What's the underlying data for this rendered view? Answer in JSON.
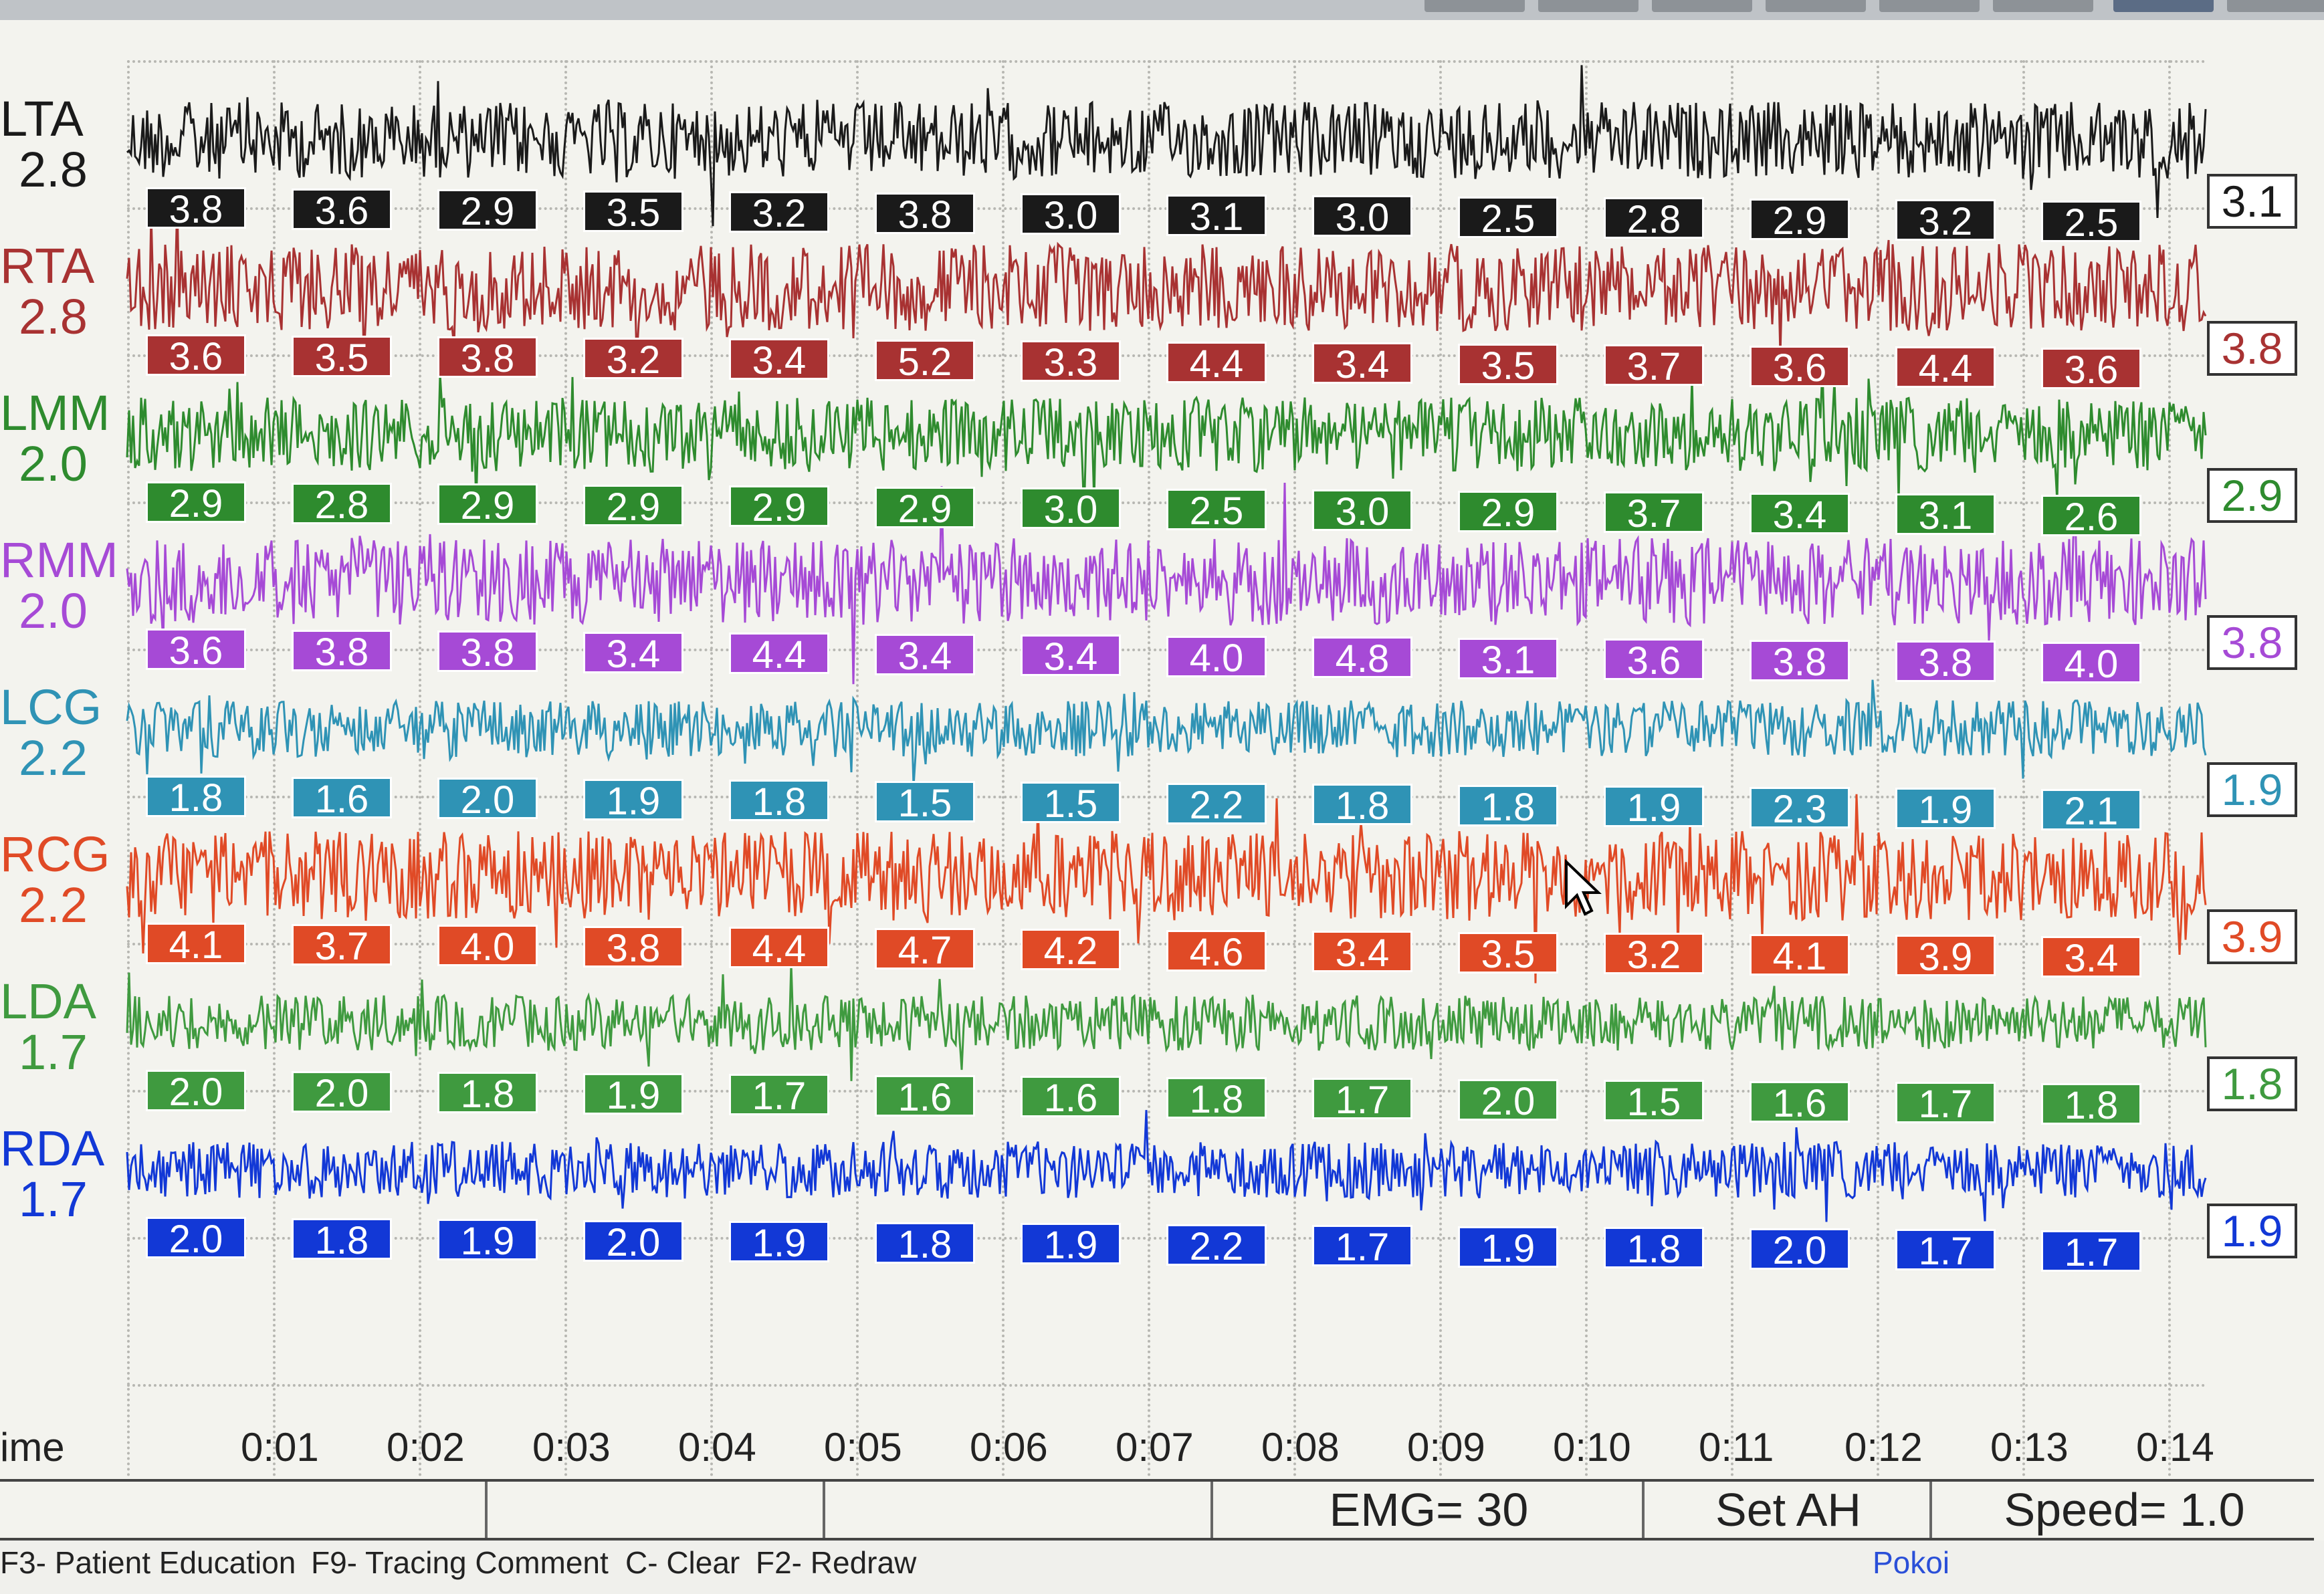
{
  "channels": [
    {
      "name": "LTA",
      "value": "2.8",
      "color": "#1a1a1a",
      "segments": [
        "3.8",
        "3.6",
        "2.9",
        "3.5",
        "3.2",
        "3.8",
        "3.0",
        "3.1",
        "3.0",
        "2.5",
        "2.8",
        "2.9",
        "3.2",
        "2.5"
      ],
      "current": "3.1"
    },
    {
      "name": "RTA",
      "value": "2.8",
      "color": "#a83232",
      "segments": [
        "3.6",
        "3.5",
        "3.8",
        "3.2",
        "3.4",
        "5.2",
        "3.3",
        "4.4",
        "3.4",
        "3.5",
        "3.7",
        "3.6",
        "4.4",
        "3.6"
      ],
      "current": "3.8"
    },
    {
      "name": "LMM",
      "value": "2.0",
      "color": "#2e8b2e",
      "segments": [
        "2.9",
        "2.8",
        "2.9",
        "2.9",
        "2.9",
        "2.9",
        "3.0",
        "2.5",
        "3.0",
        "2.9",
        "3.7",
        "3.4",
        "3.1",
        "2.6"
      ],
      "current": "2.9"
    },
    {
      "name": "RMM",
      "value": "2.0",
      "color": "#a64ad6",
      "segments": [
        "3.6",
        "3.8",
        "3.8",
        "3.4",
        "4.4",
        "3.4",
        "3.4",
        "4.0",
        "4.8",
        "3.1",
        "3.6",
        "3.8",
        "3.8",
        "4.0"
      ],
      "current": "3.8"
    },
    {
      "name": "LCG",
      "value": "2.2",
      "color": "#2f93b5",
      "segments": [
        "1.8",
        "1.6",
        "2.0",
        "1.9",
        "1.8",
        "1.5",
        "1.5",
        "2.2",
        "1.8",
        "1.8",
        "1.9",
        "2.3",
        "1.9",
        "2.1"
      ],
      "current": "1.9"
    },
    {
      "name": "RCG",
      "value": "2.2",
      "color": "#e04a26",
      "segments": [
        "4.1",
        "3.7",
        "4.0",
        "3.8",
        "4.4",
        "4.7",
        "4.2",
        "4.6",
        "3.4",
        "3.5",
        "3.2",
        "4.1",
        "3.9",
        "3.4"
      ],
      "current": "3.9"
    },
    {
      "name": "LDA",
      "value": "1.7",
      "color": "#3f9a3f",
      "segments": [
        "2.0",
        "2.0",
        "1.8",
        "1.9",
        "1.7",
        "1.6",
        "1.6",
        "1.8",
        "1.7",
        "2.0",
        "1.5",
        "1.6",
        "1.7",
        "1.8"
      ],
      "current": "1.8"
    },
    {
      "name": "RDA",
      "value": "1.7",
      "color": "#1238d6",
      "segments": [
        "2.0",
        "1.8",
        "1.9",
        "2.0",
        "1.9",
        "1.8",
        "1.9",
        "2.2",
        "1.7",
        "1.9",
        "1.8",
        "2.0",
        "1.7",
        "1.7"
      ],
      "current": "1.9"
    }
  ],
  "time_axis": {
    "label": "ime",
    "ticks": [
      "0:01",
      "0:02",
      "0:03",
      "0:04",
      "0:05",
      "0:06",
      "0:07",
      "0:08",
      "0:09",
      "0:10",
      "0:11",
      "0:12",
      "0:13",
      "0:14"
    ]
  },
  "status": {
    "emg": "EMG= 30",
    "set": "Set AH",
    "speed": "Speed= 1.0"
  },
  "fkeys": [
    {
      "label": "F3- Patient Education"
    },
    {
      "label": "F9- Tracing Comment"
    },
    {
      "label": "C- Clear"
    },
    {
      "label": "F2- Redraw"
    }
  ],
  "brand": "Pokoi"
}
